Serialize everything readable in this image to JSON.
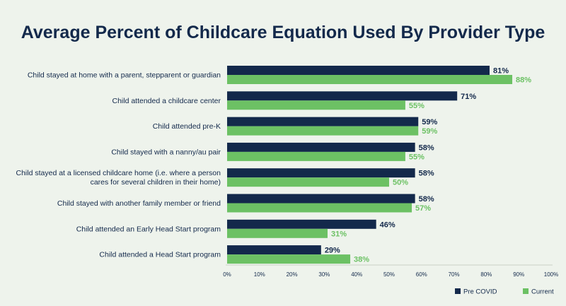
{
  "chart_data": {
    "type": "bar",
    "orientation": "horizontal",
    "title": "Average Percent of Childcare Equation Used By Provider Type",
    "categories": [
      [
        "Child stayed at home with a parent, stepparent or guardian"
      ],
      [
        "Child attended a childcare center"
      ],
      [
        "Child attended pre-K"
      ],
      [
        "Child stayed with a nanny/au pair"
      ],
      [
        "Child stayed at a licensed childcare home (i.e. where a person",
        "cares for several children in their home)"
      ],
      [
        "Child stayed with another family member or friend"
      ],
      [
        "Child attended an Early Head Start program"
      ],
      [
        "Child attended a Head Start program"
      ]
    ],
    "series": [
      {
        "name": "Pre COVID",
        "color": "#13294b",
        "values": [
          81,
          71,
          59,
          58,
          58,
          58,
          46,
          29
        ]
      },
      {
        "name": "Current",
        "color": "#6cc164",
        "values": [
          88,
          55,
          59,
          55,
          50,
          57,
          31,
          38
        ]
      }
    ],
    "xlim": [
      0,
      100
    ],
    "ticks": [
      "0%",
      "10%",
      "20%",
      "30%",
      "40%",
      "50%",
      "60%",
      "70%",
      "80%",
      "90%",
      "100%"
    ],
    "value_suffix": "%",
    "grid": false,
    "legend_position": "bottom-right",
    "title_color": "#13294b",
    "label_color": "#13294b",
    "background": "#eef3ec"
  }
}
